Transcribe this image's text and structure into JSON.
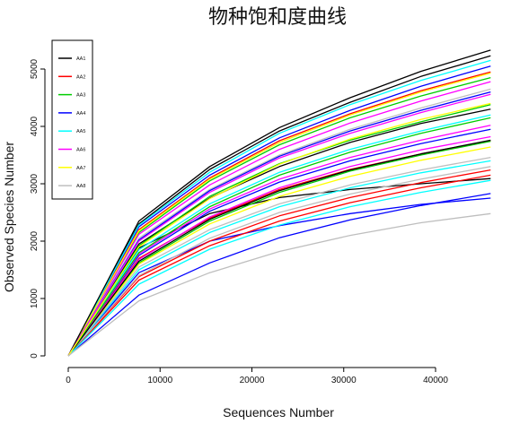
{
  "chart_data": {
    "type": "line",
    "title": "物种饱和度曲线",
    "xlabel": "Sequences Number",
    "ylabel": "Observed Species Number",
    "xlim": [
      0,
      47000
    ],
    "ylim": [
      -200,
      5500
    ],
    "xticks": [
      0,
      10000,
      20000,
      30000,
      40000
    ],
    "yticks": [
      0,
      1000,
      2000,
      3000,
      4000,
      5000
    ],
    "x": [
      0,
      7700,
      15400,
      23000,
      30700,
      38400,
      46000
    ],
    "legend_position": "top-left",
    "grid": false,
    "palette": [
      "#000000",
      "#ff0000",
      "#00cd00",
      "#0000ff",
      "#00ffff",
      "#ff00ff",
      "#ffff00",
      "#bebebe"
    ],
    "series": [
      {
        "name": "AA1",
        "color": "#000000",
        "values": [
          0,
          2350,
          3300,
          3980,
          4500,
          4960,
          5330
        ]
      },
      {
        "name": "AA2",
        "color": "#ff0000",
        "values": [
          0,
          1320,
          1920,
          2350,
          2670,
          2930,
          3150
        ]
      },
      {
        "name": "AA3",
        "color": "#00cd00",
        "values": [
          0,
          1800,
          2600,
          3150,
          3550,
          3880,
          4150
        ]
      },
      {
        "name": "AA4",
        "color": "#0000ff",
        "values": [
          0,
          1060,
          1620,
          2060,
          2370,
          2620,
          2830
        ]
      },
      {
        "name": "AA5",
        "color": "#00ffff",
        "values": [
          0,
          1250,
          1860,
          2280,
          2600,
          2850,
          3060
        ]
      },
      {
        "name": "AA6",
        "color": "#ff00ff",
        "values": [
          0,
          2000,
          2850,
          3450,
          3880,
          4240,
          4560
        ]
      },
      {
        "name": "AA7",
        "color": "#ffff00",
        "values": [
          0,
          1900,
          2740,
          3340,
          3780,
          4120,
          4400
        ]
      },
      {
        "name": "AA8",
        "color": "#bebebe",
        "values": [
          0,
          960,
          1450,
          1820,
          2100,
          2320,
          2480
        ]
      }
    ],
    "unlabeled_series": [
      {
        "color": "#000000",
        "values": [
          0,
          1880,
          2480,
          2760,
          2900,
          3000,
          3090
        ]
      },
      {
        "color": "#000000",
        "values": [
          0,
          2300,
          3250,
          3920,
          4420,
          4870,
          5230
        ]
      },
      {
        "color": "#000000",
        "values": [
          0,
          1950,
          2750,
          3300,
          3720,
          4050,
          4300
        ]
      },
      {
        "color": "#0000ff",
        "values": [
          0,
          1450,
          2000,
          2270,
          2480,
          2640,
          2750
        ]
      },
      {
        "color": "#0000ff",
        "values": [
          0,
          2250,
          3150,
          3800,
          4280,
          4700,
          5050
        ]
      },
      {
        "color": "#0000ff",
        "values": [
          0,
          1750,
          2520,
          3030,
          3400,
          3700,
          3950
        ]
      },
      {
        "color": "#ff0000",
        "values": [
          0,
          2200,
          3100,
          3750,
          4220,
          4620,
          4950
        ]
      },
      {
        "color": "#ff0000",
        "values": [
          0,
          1700,
          2400,
          2900,
          3250,
          3520,
          3750
        ]
      },
      {
        "color": "#ff0000",
        "values": [
          0,
          1380,
          2000,
          2440,
          2760,
          3020,
          3240
        ]
      },
      {
        "color": "#00cd00",
        "values": [
          0,
          2150,
          3050,
          3680,
          4150,
          4530,
          4850
        ]
      },
      {
        "color": "#00cd00",
        "values": [
          0,
          1620,
          2350,
          2850,
          3220,
          3500,
          3740
        ]
      },
      {
        "color": "#00ffff",
        "values": [
          0,
          2280,
          3200,
          3880,
          4380,
          4800,
          5150
        ]
      },
      {
        "color": "#00ffff",
        "values": [
          0,
          1850,
          2650,
          3200,
          3600,
          3920,
          4200
        ]
      },
      {
        "color": "#00ffff",
        "values": [
          0,
          1500,
          2150,
          2600,
          2930,
          3190,
          3400
        ]
      },
      {
        "color": "#ff00ff",
        "values": [
          0,
          2120,
          2980,
          3600,
          4060,
          4440,
          4780
        ]
      },
      {
        "color": "#ff00ff",
        "values": [
          0,
          1680,
          2420,
          2930,
          3300,
          3590,
          3820
        ]
      },
      {
        "color": "#ffff00",
        "values": [
          0,
          2180,
          3080,
          3720,
          4200,
          4600,
          4930
        ]
      },
      {
        "color": "#ffff00",
        "values": [
          0,
          1600,
          2300,
          2780,
          3130,
          3410,
          3640
        ]
      },
      {
        "color": "#bebebe",
        "values": [
          0,
          2050,
          2900,
          3500,
          3950,
          4320,
          4650
        ]
      },
      {
        "color": "#bebebe",
        "values": [
          0,
          1550,
          2200,
          2650,
          2980,
          3240,
          3460
        ]
      },
      {
        "color": "#bebebe",
        "values": [
          0,
          1400,
          2050,
          2500,
          2820,
          3080,
          3300
        ]
      },
      {
        "color": "#00cd00",
        "values": [
          0,
          1920,
          2780,
          3350,
          3760,
          4080,
          4380
        ]
      },
      {
        "color": "#0000ff",
        "values": [
          0,
          2020,
          2880,
          3480,
          3920,
          4280,
          4600
        ]
      },
      {
        "color": "#ff00ff",
        "values": [
          0,
          1780,
          2560,
          3080,
          3460,
          3760,
          4020
        ]
      },
      {
        "color": "#000000",
        "values": [
          0,
          1650,
          2380,
          2880,
          3240,
          3520,
          3760
        ]
      }
    ]
  }
}
